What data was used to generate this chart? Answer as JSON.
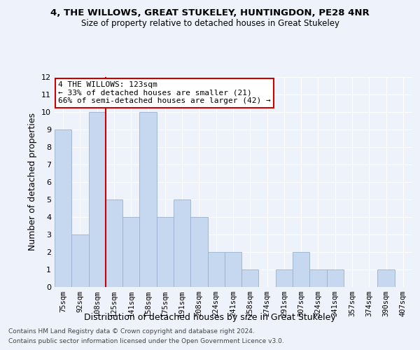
{
  "title1": "4, THE WILLOWS, GREAT STUKELEY, HUNTINGDON, PE28 4NR",
  "title2": "Size of property relative to detached houses in Great Stukeley",
  "xlabel": "Distribution of detached houses by size in Great Stukeley",
  "ylabel": "Number of detached properties",
  "categories": [
    "75sqm",
    "92sqm",
    "108sqm",
    "125sqm",
    "141sqm",
    "158sqm",
    "175sqm",
    "191sqm",
    "208sqm",
    "224sqm",
    "241sqm",
    "258sqm",
    "274sqm",
    "291sqm",
    "307sqm",
    "324sqm",
    "341sqm",
    "357sqm",
    "374sqm",
    "390sqm",
    "407sqm"
  ],
  "values": [
    9,
    3,
    10,
    5,
    4,
    10,
    4,
    5,
    4,
    2,
    2,
    1,
    0,
    1,
    2,
    1,
    1,
    0,
    0,
    1,
    0
  ],
  "bar_color": "#c5d8f0",
  "bar_edge_color": "#9ab0cc",
  "vline_color": "#cc0000",
  "annotation_text": "4 THE WILLOWS: 123sqm\n← 33% of detached houses are smaller (21)\n66% of semi-detached houses are larger (42) →",
  "annotation_box_color": "#ffffff",
  "annotation_box_edge": "#cc0000",
  "ylim": [
    0,
    12
  ],
  "yticks": [
    0,
    1,
    2,
    3,
    4,
    5,
    6,
    7,
    8,
    9,
    10,
    11,
    12
  ],
  "background_color": "#eef2fa",
  "grid_color": "#ffffff",
  "footer1": "Contains HM Land Registry data © Crown copyright and database right 2024.",
  "footer2": "Contains public sector information licensed under the Open Government Licence v3.0."
}
